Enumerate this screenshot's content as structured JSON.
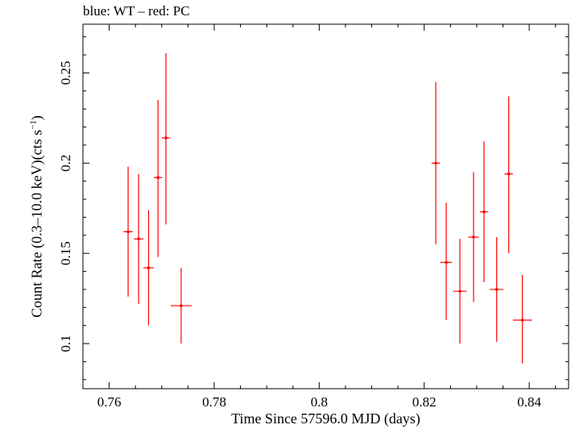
{
  "chart_data": {
    "type": "scatter",
    "title": "blue: WT – red: PC",
    "xlabel": "Time Since 57596.0 MJD (days)",
    "ylabel_main": "Count Rate (0.3–10.0 keV)(cts s",
    "ylabel_sup": "−1",
    "ylabel_end": ")",
    "xlim": [
      0.755,
      0.8475
    ],
    "ylim": [
      0.075,
      0.277
    ],
    "xticks": [
      0.76,
      0.78,
      0.8,
      0.82,
      0.84
    ],
    "xtick_labels": [
      "0.76",
      "0.78",
      "0.8",
      "0.82",
      "0.84"
    ],
    "yticks": [
      0.1,
      0.15,
      0.2,
      0.25
    ],
    "ytick_labels": [
      "0.1",
      "0.15",
      "0.2",
      "0.25"
    ],
    "grid": false,
    "series": [
      {
        "name": "PC",
        "color": "#ff0000",
        "points": [
          {
            "x": 0.7636,
            "y": 0.162,
            "xerr": 0.0009,
            "ylo": 0.126,
            "yhi": 0.198
          },
          {
            "x": 0.7656,
            "y": 0.158,
            "xerr": 0.0009,
            "ylo": 0.122,
            "yhi": 0.194
          },
          {
            "x": 0.7675,
            "y": 0.142,
            "xerr": 0.001,
            "ylo": 0.11,
            "yhi": 0.174
          },
          {
            "x": 0.7693,
            "y": 0.192,
            "xerr": 0.0008,
            "ylo": 0.148,
            "yhi": 0.235
          },
          {
            "x": 0.7708,
            "y": 0.214,
            "xerr": 0.0008,
            "ylo": 0.166,
            "yhi": 0.261
          },
          {
            "x": 0.7737,
            "y": 0.121,
            "xerr": 0.002,
            "ylo": 0.1,
            "yhi": 0.142
          },
          {
            "x": 0.8222,
            "y": 0.2,
            "xerr": 0.0008,
            "ylo": 0.155,
            "yhi": 0.245
          },
          {
            "x": 0.8242,
            "y": 0.145,
            "xerr": 0.0011,
            "ylo": 0.113,
            "yhi": 0.178
          },
          {
            "x": 0.8268,
            "y": 0.129,
            "xerr": 0.0013,
            "ylo": 0.1,
            "yhi": 0.158
          },
          {
            "x": 0.8294,
            "y": 0.159,
            "xerr": 0.001,
            "ylo": 0.123,
            "yhi": 0.195
          },
          {
            "x": 0.8314,
            "y": 0.173,
            "xerr": 0.0008,
            "ylo": 0.134,
            "yhi": 0.212
          },
          {
            "x": 0.8338,
            "y": 0.13,
            "xerr": 0.0013,
            "ylo": 0.101,
            "yhi": 0.159
          },
          {
            "x": 0.8361,
            "y": 0.194,
            "xerr": 0.0008,
            "ylo": 0.15,
            "yhi": 0.237
          },
          {
            "x": 0.8387,
            "y": 0.113,
            "xerr": 0.0018,
            "ylo": 0.089,
            "yhi": 0.138
          }
        ]
      }
    ]
  }
}
